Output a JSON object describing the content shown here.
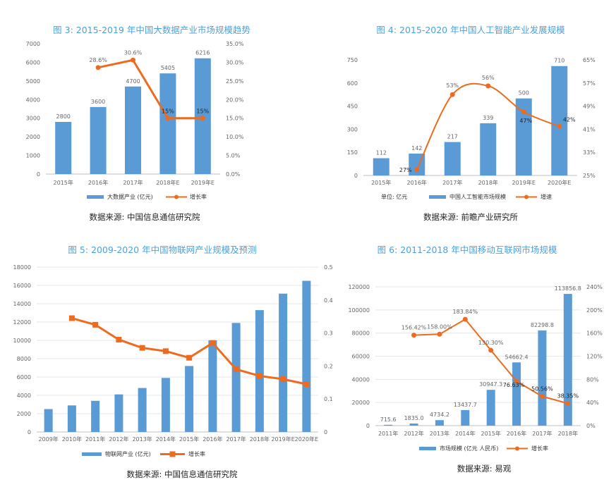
{
  "colors": {
    "bar": "#5b9bd5",
    "line": "#ed6b1f",
    "title": "#4aa3df"
  },
  "chart_data": [
    {
      "type": "bar",
      "title": "图 3: 2015-2019 年中国大数据产业市场规模趋势",
      "categories": [
        "2015年",
        "2016年",
        "2017年",
        "2018年E",
        "2019年E"
      ],
      "left_ticks": [
        "0",
        "1000",
        "2000",
        "3000",
        "4000",
        "5000",
        "6000",
        "7000"
      ],
      "right_ticks": [
        "0.0%",
        "5.0%",
        "10.0%",
        "15.0%",
        "20.0%",
        "25.0%",
        "30.0%",
        "35.0%"
      ],
      "ylim_left": [
        0,
        7000
      ],
      "ylim_right": [
        0,
        35
      ],
      "series": [
        {
          "name": "大数据产业 (亿元)",
          "kind": "bar",
          "values": [
            2800,
            3600,
            4700,
            5405,
            6216
          ],
          "labels": [
            "2800",
            "3600",
            "4700",
            "5405",
            "6216"
          ]
        },
        {
          "name": "增长率",
          "kind": "line",
          "values": [
            null,
            28.6,
            30.6,
            15,
            15
          ],
          "labels": [
            "",
            "28.6%",
            "30.6%",
            "15%",
            "15%"
          ]
        }
      ],
      "legend_position": "bottom",
      "source": "数据来源: 中国信息通信研究院"
    },
    {
      "type": "bar",
      "title": "图 4: 2015-2020 年中国人工智能产业发展规模",
      "categories": [
        "2015年",
        "2016年",
        "2017年",
        "2018年",
        "2019年E",
        "2020年E"
      ],
      "left_ticks": [
        "0",
        "150",
        "300",
        "450",
        "600",
        "750"
      ],
      "right_ticks": [
        "25%",
        "33%",
        "41%",
        "49%",
        "57%",
        "65%"
      ],
      "ylim_left": [
        0,
        750
      ],
      "ylim_right": [
        25,
        65
      ],
      "series": [
        {
          "name": "中国人工智能市场规模",
          "kind": "bar",
          "values": [
            112,
            142,
            217,
            339,
            500,
            710
          ],
          "labels": [
            "112",
            "142",
            "217",
            "339",
            "500",
            "710"
          ]
        },
        {
          "name": "增速",
          "kind": "smooth-line",
          "values": [
            null,
            27,
            53,
            56,
            47,
            42
          ],
          "labels": [
            "",
            "27%",
            "53%",
            "56%",
            "47%",
            "42%"
          ]
        }
      ],
      "unit_note": "单位: 亿元",
      "legend_position": "bottom",
      "source": "数据来源: 前瞻产业研究所"
    },
    {
      "type": "bar",
      "title": "图 5: 2009-2020 年中国物联网产业规模及预测",
      "categories": [
        "2009年",
        "2010年",
        "2011年",
        "2012年",
        "2013年",
        "2014年",
        "2015年",
        "2016年",
        "2017年",
        "2018年",
        "2019年E",
        "2020年E"
      ],
      "left_ticks": [
        "0",
        "2000",
        "4000",
        "6000",
        "8000",
        "10000",
        "12000",
        "14000",
        "16000",
        "18000"
      ],
      "right_ticks": [
        "0",
        "0.1",
        "0.2",
        "0.3",
        "0.4",
        "0.5"
      ],
      "ylim_left": [
        0,
        18000
      ],
      "ylim_right": [
        0,
        0.5
      ],
      "series": [
        {
          "name": "物联网产业 (亿元)",
          "kind": "bar",
          "values": [
            2500,
            2900,
            3400,
            4100,
            4800,
            5900,
            7200,
            10000,
            11900,
            13300,
            15100,
            16500
          ]
        },
        {
          "name": "增长率",
          "kind": "line",
          "values": [
            null,
            0.345,
            0.325,
            0.28,
            0.255,
            0.245,
            0.225,
            0.27,
            0.19,
            0.17,
            0.16,
            0.145
          ]
        }
      ],
      "legend_position": "bottom",
      "source": "数据来源: 中国信息通信研究院"
    },
    {
      "type": "bar",
      "title": "图 6: 2011-2018 年中国移动互联网市场规模",
      "categories": [
        "2011年",
        "2012年",
        "2013年",
        "2014年",
        "2015年",
        "2016年",
        "2017年",
        "2018年"
      ],
      "left_ticks": [
        "0",
        "20000",
        "40000",
        "60000",
        "80000",
        "100000",
        "120000"
      ],
      "right_ticks": [
        "0%",
        "40%",
        "80%",
        "120%",
        "160%",
        "200%",
        "240%"
      ],
      "ylim_left": [
        0,
        120000
      ],
      "ylim_right": [
        0,
        240
      ],
      "series": [
        {
          "name": "市场规模 (亿元 人民币)",
          "kind": "bar",
          "values": [
            715.6,
            1835.0,
            4734.2,
            13437.7,
            30947.3,
            54662.4,
            82298.8,
            113856.8
          ],
          "labels": [
            "715.6",
            "1835.0",
            "4734.2",
            "13437.7",
            "30947.3",
            "54662.4",
            "82298.8",
            "113856.8"
          ]
        },
        {
          "name": "增长率",
          "kind": "line",
          "values": [
            null,
            156.42,
            158.0,
            183.84,
            130.3,
            76.63,
            50.56,
            38.35
          ],
          "labels": [
            "",
            "156.42%",
            "158.00%",
            "183.84%",
            "130.30%",
            "76.63%",
            "50.56%",
            "38.35%"
          ]
        }
      ],
      "legend_position": "bottom",
      "source": "数据来源: 易观"
    }
  ]
}
